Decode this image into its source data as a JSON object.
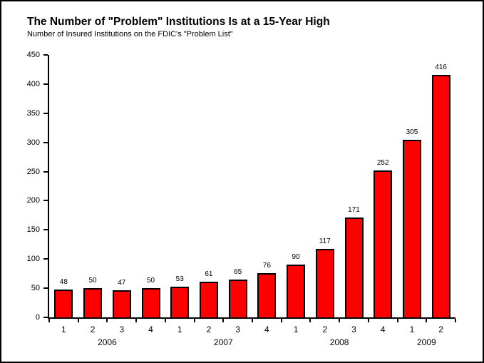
{
  "chart_data": {
    "type": "bar",
    "title": "The Number of \"Problem\" Institutions Is at a 15-Year High",
    "subtitle": "Number of Insured Institutions on the FDIC's \"Problem List\"",
    "categories": [
      "1",
      "2",
      "3",
      "4",
      "1",
      "2",
      "3",
      "4",
      "1",
      "2",
      "3",
      "4",
      "1",
      "2"
    ],
    "values": [
      48,
      50,
      47,
      50,
      53,
      61,
      65,
      76,
      90,
      117,
      171,
      252,
      305,
      416
    ],
    "year_groups": [
      {
        "label": "2006",
        "start": 0,
        "count": 4
      },
      {
        "label": "2007",
        "start": 4,
        "count": 4
      },
      {
        "label": "2008",
        "start": 8,
        "count": 4
      },
      {
        "label": "2009",
        "start": 12,
        "count": 2
      }
    ],
    "xlabel": "",
    "ylabel": "",
    "ylim": [
      0,
      450
    ],
    "yticks": [
      0,
      50,
      100,
      150,
      200,
      250,
      300,
      350,
      400,
      450
    ],
    "grid": false,
    "legend": "none",
    "value_labels_shown": true,
    "colors": {
      "bar_fill": "#ff0000",
      "bar_border": "#000000",
      "axis": "#000000",
      "text": "#000000",
      "background": "#ffffff",
      "frame_border": "#000000"
    }
  }
}
